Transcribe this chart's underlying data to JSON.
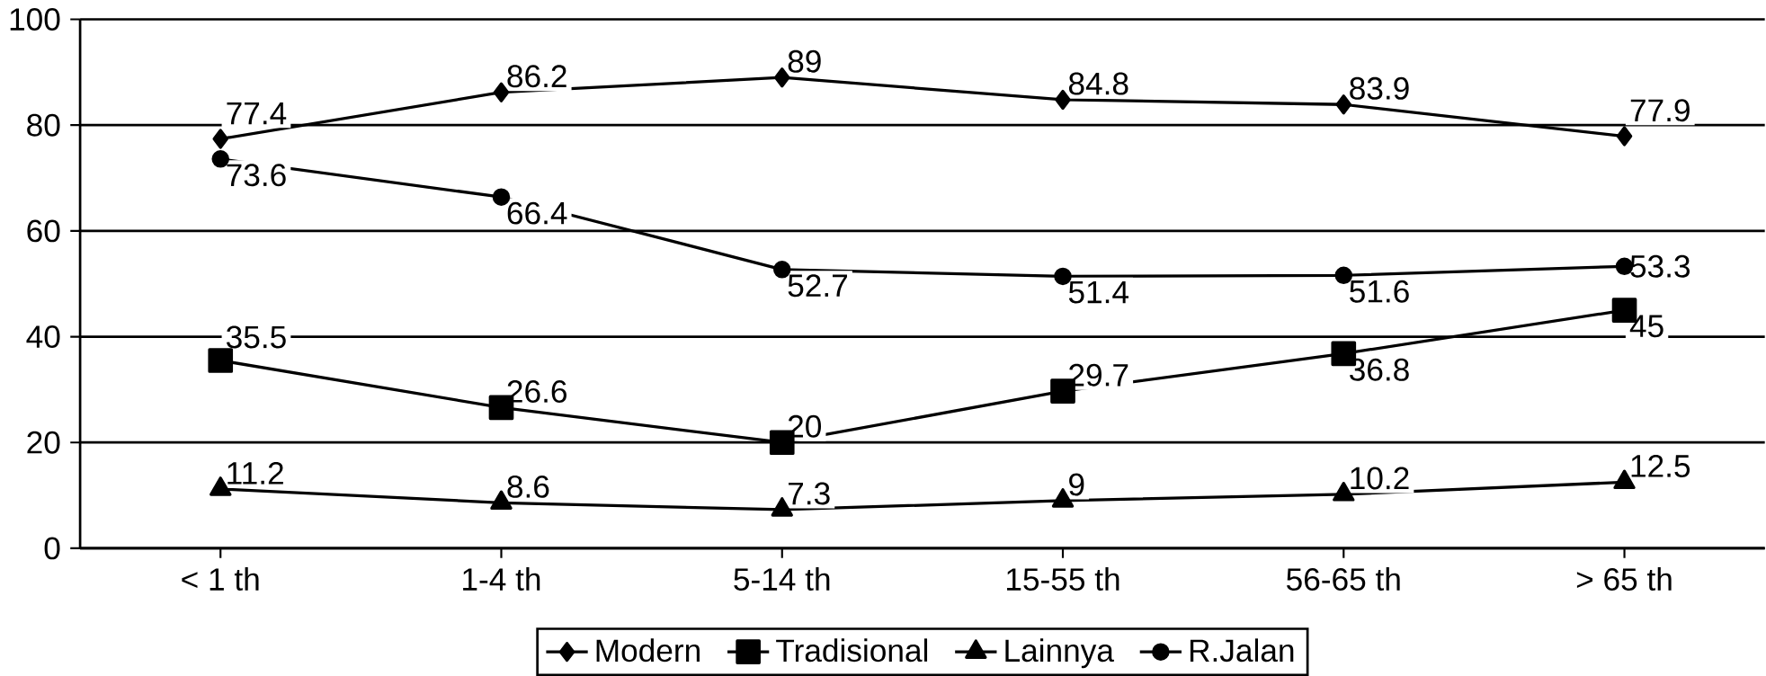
{
  "chart_data": {
    "type": "line",
    "categories": [
      "< 1 th",
      "1-4 th",
      "5-14 th",
      "15-55 th",
      "56-65 th",
      "> 65 th"
    ],
    "series": [
      {
        "name": "Modern",
        "color": "#000000",
        "marker": "diamond",
        "values": [
          77.4,
          86.2,
          89,
          84.8,
          83.9,
          77.9
        ]
      },
      {
        "name": "Tradisional",
        "color": "#000000",
        "marker": "square",
        "values": [
          35.5,
          26.6,
          20,
          29.7,
          36.8,
          45
        ]
      },
      {
        "name": "Lainnya",
        "color": "#000000",
        "marker": "triangle",
        "values": [
          11.2,
          8.6,
          7.3,
          9,
          10.2,
          12.5
        ]
      },
      {
        "name": "R.Jalan",
        "color": "#000000",
        "marker": "circle",
        "values": [
          73.6,
          66.4,
          52.7,
          51.4,
          51.6,
          53.3
        ]
      }
    ],
    "ylim": [
      0,
      100
    ],
    "yticks": [
      0,
      20,
      40,
      60,
      80,
      100
    ],
    "grid": "y",
    "legend": "bottom",
    "data_labels": true,
    "line_style": "solid"
  }
}
